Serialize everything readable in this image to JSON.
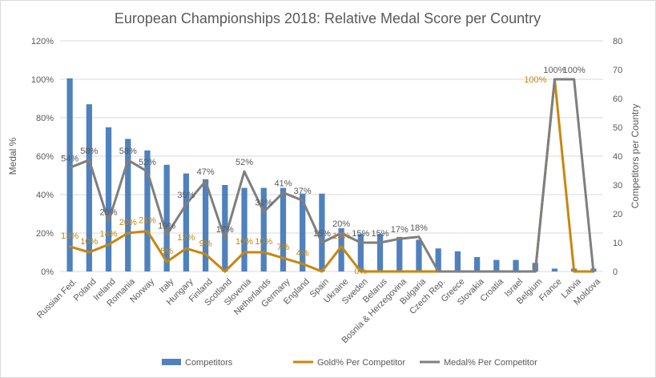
{
  "chart_data": {
    "type": "bar",
    "title": "European Championships 2018: Relative Medal Score per Country",
    "ylabel_left": "Medal %",
    "ylabel_right": "Competitors per Country",
    "ylim_left": [
      0,
      1.2
    ],
    "left_ticks": [
      "0%",
      "20%",
      "40%",
      "60%",
      "80%",
      "100%",
      "120%"
    ],
    "ylim_right": [
      0,
      80
    ],
    "right_ticks": [
      "0",
      "10",
      "20",
      "30",
      "40",
      "50",
      "60",
      "70",
      "80"
    ],
    "legend_position": "bottom",
    "gridlines": true,
    "colors": {
      "competitors": "#4f81bd",
      "gold": "#c9860e",
      "medal": "#7f7f7f"
    },
    "categories": [
      "Russian Fed.",
      "Poland",
      "Ireland",
      "Romania",
      "Norway",
      "Italy",
      "Hungary",
      "Finland",
      "Scotland",
      "Slovenia",
      "Netherlands",
      "Germany",
      "England",
      "Spain",
      "Ukraine",
      "Sweden",
      "Belarus",
      "Bosnia & Herzegovina",
      "Bulgaria",
      "Czech Rep.",
      "Greece",
      "Slovakia",
      "Croatia",
      "Israel",
      "Belgium",
      "France",
      "Latvia",
      "Moldova"
    ],
    "series": [
      {
        "name": "Competitors",
        "type": "bar",
        "axis": "right",
        "values": [
          67,
          58,
          50,
          46,
          42,
          37,
          34,
          32,
          30,
          29,
          29,
          29,
          27,
          27,
          15,
          13,
          13,
          12,
          11,
          8,
          7,
          5,
          4,
          4,
          3,
          1,
          1,
          1
        ]
      },
      {
        "name": "Gold% Per Competitor",
        "type": "line",
        "axis": "left",
        "values": [
          0.13,
          0.1,
          0.14,
          0.2,
          0.21,
          0.05,
          0.12,
          0.09,
          0.0,
          0.1,
          0.1,
          0.07,
          0.04,
          0.0,
          0.13,
          0.0,
          0.0,
          0.0,
          0.0,
          0.0,
          0.0,
          0.0,
          0.0,
          0.0,
          0.0,
          1.0,
          0.0,
          0.0
        ],
        "labels": [
          "13%",
          "10%",
          "14%",
          "20%",
          "21%",
          "5%",
          "12%",
          "9%",
          "",
          "10%",
          "10%",
          "7%",
          "4%",
          "",
          "13%",
          "0%",
          "",
          "",
          "",
          "",
          "",
          "",
          "",
          "",
          "",
          "100%",
          "",
          ""
        ]
      },
      {
        "name": "Medal% Per Competitor",
        "type": "line",
        "axis": "left",
        "values": [
          0.54,
          0.58,
          0.26,
          0.58,
          0.52,
          0.19,
          0.35,
          0.47,
          0.17,
          0.52,
          0.31,
          0.41,
          0.37,
          0.15,
          0.2,
          0.15,
          0.15,
          0.17,
          0.18,
          0.0,
          0.0,
          0.0,
          0.0,
          0.0,
          0.0,
          1.0,
          1.0,
          0.0
        ],
        "labels": [
          "54%",
          "58%",
          "26%",
          "58%",
          "52%",
          "19%",
          "35%",
          "47%",
          "17%",
          "52%",
          "31%",
          "41%",
          "37%",
          "15%",
          "20%",
          "15%",
          "15%",
          "17%",
          "18%",
          "",
          "",
          "",
          "",
          "",
          "",
          "100%",
          "100%",
          ""
        ]
      }
    ]
  }
}
